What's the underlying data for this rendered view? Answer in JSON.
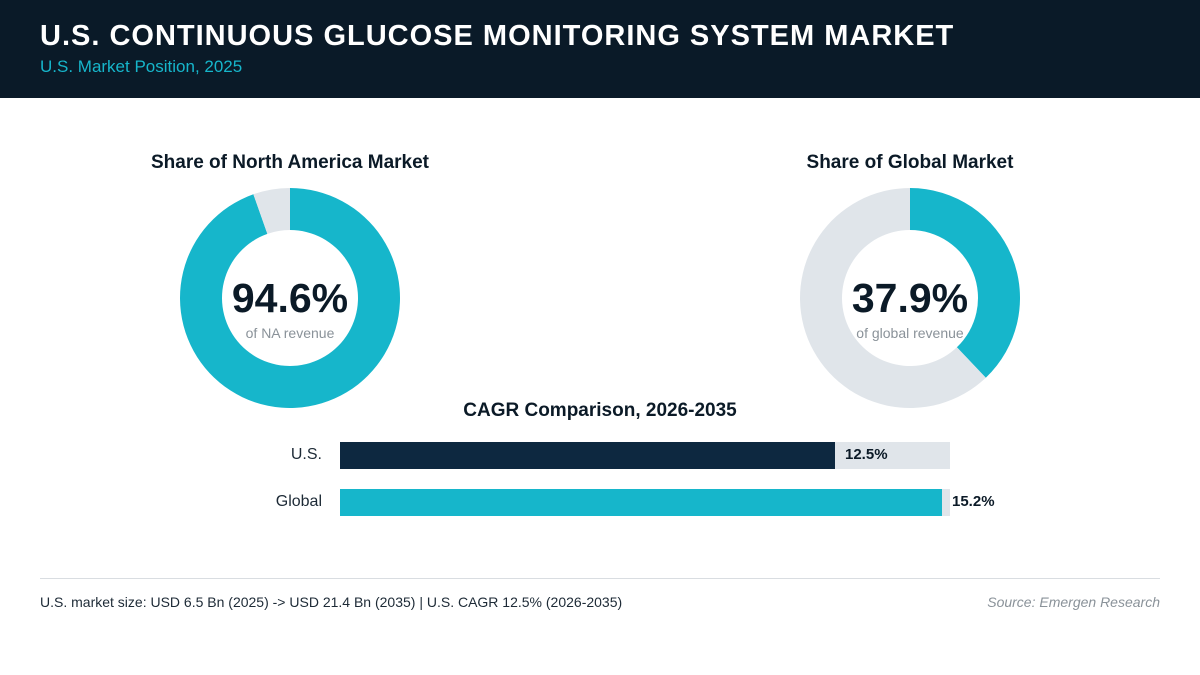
{
  "header": {
    "title": "U.S. CONTINUOUS GLUCOSE MONITORING SYSTEM MARKET",
    "subtitle": "U.S. Market Position, 2025"
  },
  "colors": {
    "header_bg": "#0a1a28",
    "accent": "#16b6cb",
    "navy": "#0d2840",
    "track": "#e0e5ea"
  },
  "chart_data": [
    {
      "type": "pie",
      "title": "Share of North America Market",
      "center_label": "94.6%",
      "caption": "of NA revenue",
      "values": [
        94.6,
        5.4
      ],
      "colors": [
        "#16b6cb",
        "#e0e5ea"
      ]
    },
    {
      "type": "pie",
      "title": "Share of Global Market",
      "center_label": "37.9%",
      "caption": "of global revenue",
      "values": [
        37.9,
        62.1
      ],
      "colors": [
        "#16b6cb",
        "#e0e5ea"
      ]
    },
    {
      "type": "bar",
      "orientation": "horizontal",
      "title": "CAGR Comparison, 2026-2035",
      "categories": [
        "U.S.",
        "Global"
      ],
      "values": [
        12.5,
        15.2
      ],
      "value_labels": [
        "12.5%",
        "15.2%"
      ],
      "xlim": [
        0,
        15.4
      ],
      "colors": [
        "#0d2840",
        "#16b6cb"
      ]
    }
  ],
  "footer": {
    "note": "U.S. market size: USD 6.5 Bn (2025) -> USD 21.4 Bn (2035)  |  U.S. CAGR 12.5% (2026-2035)",
    "source": "Source: Emergen Research"
  }
}
